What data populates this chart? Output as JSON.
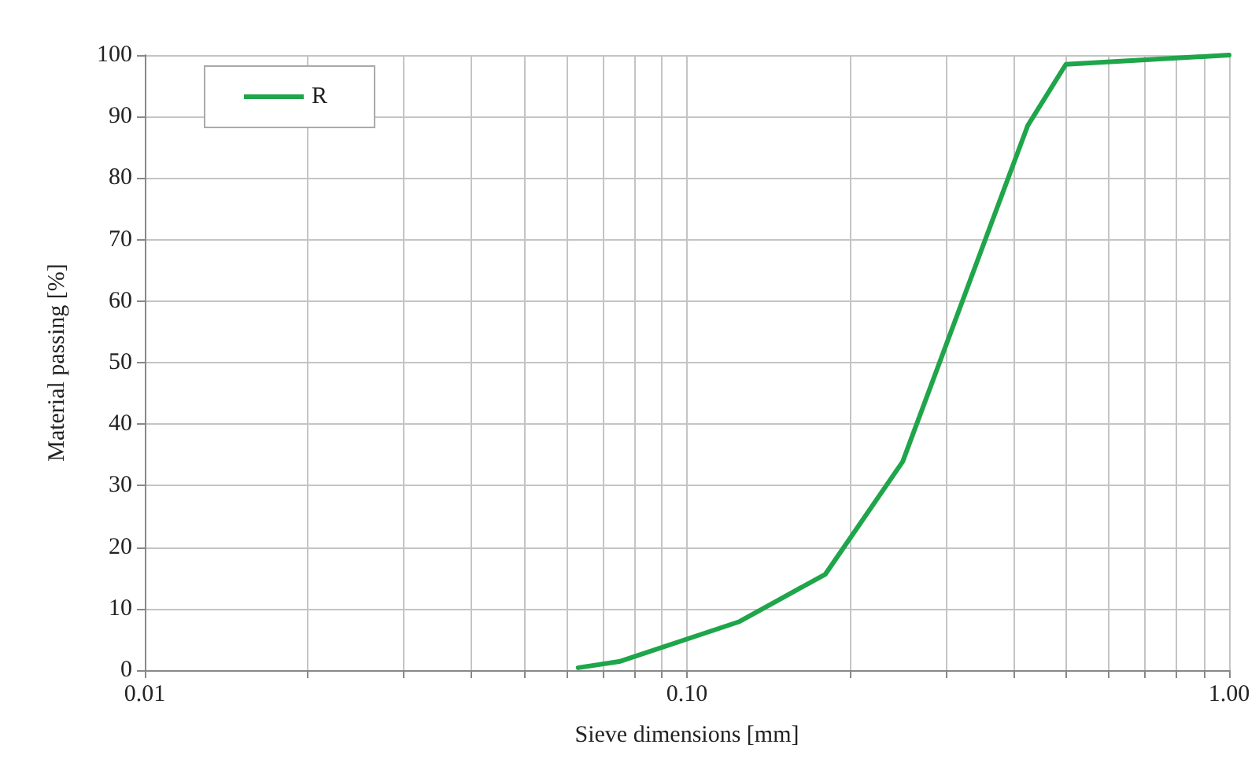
{
  "chart_data": {
    "type": "line",
    "xlabel": "Sieve dimensions [mm]",
    "ylabel": "Material passing [%]",
    "x": [
      0.063,
      0.075,
      0.125,
      0.18,
      0.25,
      0.425,
      0.5,
      1
    ],
    "series": [
      {
        "name": "R",
        "color": "#1fa54a",
        "values": [
          0.4,
          1.4,
          7.9,
          15.6,
          33.9,
          88.5,
          98.5,
          100
        ]
      }
    ],
    "log": "x",
    "xlim": [
      0.01,
      1
    ],
    "xticks": [
      {
        "value": 0.01,
        "label": "0.01"
      },
      {
        "value": 0.02,
        "label": null
      },
      {
        "value": 0.03,
        "label": null
      },
      {
        "value": 0.04,
        "label": null
      },
      {
        "value": 0.05,
        "label": null
      },
      {
        "value": 0.06,
        "label": null
      },
      {
        "value": 0.07,
        "label": null
      },
      {
        "value": 0.08,
        "label": null
      },
      {
        "value": 0.09,
        "label": null
      },
      {
        "value": 0.1,
        "label": "0.10"
      },
      {
        "value": 0.2,
        "label": null
      },
      {
        "value": 0.3,
        "label": null
      },
      {
        "value": 0.4,
        "label": null
      },
      {
        "value": 0.5,
        "label": null
      },
      {
        "value": 0.6,
        "label": null
      },
      {
        "value": 0.7,
        "label": null
      },
      {
        "value": 0.8,
        "label": null
      },
      {
        "value": 0.9,
        "label": null
      },
      {
        "value": 1,
        "label": "1.00"
      }
    ],
    "ylim": [
      0,
      100
    ],
    "yticks": [
      0,
      10,
      20,
      30,
      40,
      50,
      60,
      70,
      80,
      90,
      100
    ],
    "grid": true,
    "legend": "top left",
    "marker": "none",
    "line_style": "solid"
  }
}
